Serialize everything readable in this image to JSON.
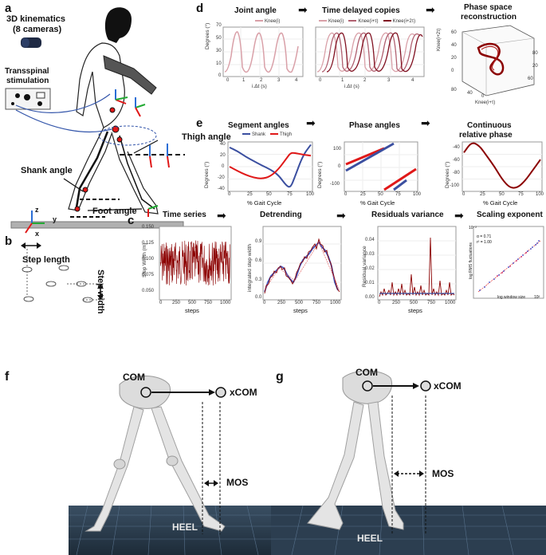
{
  "panels": {
    "a": "a",
    "b": "b",
    "c": "c",
    "d": "d",
    "e": "e",
    "f": "f",
    "g": "g"
  },
  "panel_a": {
    "kinematics": "3D kinematics",
    "cameras": "(8 cameras)",
    "stim1": "Transspinal",
    "stim2": "stimulation",
    "thigh": "Thigh angle",
    "shank": "Shank angle",
    "foot": "Foot angle",
    "axis_z": "z",
    "axis_y": "y",
    "axis_x": "x"
  },
  "panel_b": {
    "step_length": "Step length",
    "step_width": "Step width"
  },
  "panel_d": {
    "t1": "Joint angle",
    "t2": "Time delayed copies",
    "t3a": "Phase space",
    "t3b": "reconstruction",
    "leg1": "Knee(i)",
    "leg2a": "Knee(i)",
    "leg2b": "Knee(i+τ)",
    "leg2c": "Knee(i+2τ)",
    "ylabel": "Degrees (°)",
    "xlabel": "i.Δt (s)",
    "yticks": [
      "0",
      "10",
      "20",
      "30",
      "40",
      "50",
      "60",
      "70"
    ],
    "xticks": [
      "0",
      "1",
      "2",
      "3",
      "4"
    ],
    "z_label": "Knee(i+2τ)",
    "x3_label": "Knee(i+τ)",
    "cube_ticks_a": [
      "80",
      "60",
      "40",
      "20",
      "0"
    ],
    "cube_ticks_b": [
      "80",
      "60",
      "40",
      "20",
      "0"
    ],
    "cube_ticks_c": [
      "80",
      "60",
      "40",
      "20"
    ],
    "cube_ticks_d": [
      "0",
      "20",
      "40",
      "60",
      "80"
    ]
  },
  "panel_e": {
    "t1": "Segment angles",
    "t2": "Phase angles",
    "t3a": "Continuous",
    "t3b": "relative phase",
    "leg_shank": "Shank",
    "leg_thigh": "Thigh",
    "ylabel": "Degrees (°)",
    "xlabel": "% Gait Cycle",
    "xticks": [
      "0",
      "25",
      "50",
      "75",
      "100"
    ],
    "yticks1": [
      "40",
      "20",
      "0",
      "-20",
      "-40"
    ],
    "yticks2": [
      "100",
      "0",
      "-100"
    ],
    "yticks3": [
      "-40",
      "-60",
      "-80",
      "-100"
    ]
  },
  "panel_c": {
    "t1": "Time series",
    "t2": "Detrending",
    "t3": "Residuals variance",
    "t4": "Scaling exponent",
    "y1": "Step Width (m)",
    "y2": "integrated step width",
    "y3": "Residual variance",
    "y4": "log RMS fluctuations",
    "x4": "log window size",
    "xlabel": "steps",
    "yticks1": [
      "0.150",
      "0.125",
      "0.100",
      "0.075",
      "0.050"
    ],
    "yticks2": [
      "0.9",
      "0.6",
      "0.3",
      "0.0"
    ],
    "yticks3": [
      "0.04",
      "0.03",
      "0.02",
      "0.01",
      "0.00"
    ],
    "xticks": [
      "0",
      "250",
      "500",
      "750",
      "1000"
    ],
    "alpha": "α = 0.71",
    "r2": "r² = 1.00",
    "exp_top": "10⁻²",
    "exp_right": "10²"
  },
  "panel_fg": {
    "com": "COM",
    "xcom": "xCOM",
    "mos": "MOS",
    "heel": "HEEL"
  },
  "colors": {
    "blue": "#3b4fa0",
    "red": "#e01818",
    "dark_red": "#8b0000",
    "pink": "#d9a0a8"
  },
  "chart_data": [
    {
      "type": "line",
      "title": "Segment angles",
      "xlabel": "% Gait Cycle",
      "ylabel": "Degrees (°)",
      "x": [
        0,
        10,
        20,
        30,
        40,
        50,
        60,
        70,
        75,
        80,
        90,
        100
      ],
      "series": [
        {
          "name": "Shank",
          "values": [
            35,
            28,
            18,
            10,
            2,
            -5,
            -15,
            -35,
            -38,
            -20,
            20,
            40
          ]
        },
        {
          "name": "Thigh",
          "values": [
            0,
            -8,
            -15,
            -20,
            -22,
            -18,
            -5,
            15,
            25,
            25,
            22,
            20
          ]
        }
      ],
      "ylim": [
        -45,
        45
      ]
    },
    {
      "type": "line",
      "title": "Continuous relative phase",
      "xlabel": "% Gait Cycle",
      "ylabel": "Degrees (°)",
      "x": [
        0,
        10,
        20,
        30,
        40,
        50,
        60,
        70,
        80,
        90,
        100
      ],
      "series": [
        {
          "name": "",
          "values": [
            -50,
            -35,
            -40,
            -55,
            -70,
            -88,
            -100,
            -100,
            -90,
            -75,
            -60
          ]
        }
      ],
      "ylim": [
        -105,
        -35
      ]
    }
  ]
}
